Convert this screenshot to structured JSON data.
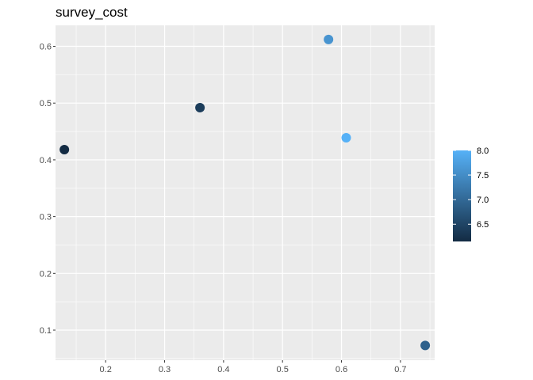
{
  "chart_data": {
    "type": "scatter",
    "title": "survey_cost",
    "xlabel": "",
    "ylabel": "",
    "xlim": [
      0.115,
      0.758
    ],
    "ylim": [
      0.047,
      0.637
    ],
    "x_ticks": [
      0.2,
      0.3,
      0.4,
      0.5,
      0.6,
      0.7
    ],
    "x_tick_labels": [
      "0.2",
      "0.3",
      "0.4",
      "0.5",
      "0.6",
      "0.7"
    ],
    "y_ticks": [
      0.1,
      0.2,
      0.3,
      0.4,
      0.5,
      0.6
    ],
    "y_tick_labels": [
      "0.1",
      "0.2",
      "0.3",
      "0.4",
      "0.5",
      "0.6"
    ],
    "grid": true,
    "legend_position": "right",
    "color_scale": {
      "low": 6.15,
      "high": 8.0,
      "low_color": "#132b43",
      "high_color": "#56b1f7",
      "ticks": [
        6.5,
        7.0,
        7.5,
        8.0
      ],
      "tick_labels": [
        "6.5",
        "7.0",
        "7.5",
        "8.0"
      ]
    },
    "points": [
      {
        "x": 0.13,
        "y": 0.418,
        "color_value": 6.15
      },
      {
        "x": 0.36,
        "y": 0.492,
        "color_value": 6.4
      },
      {
        "x": 0.578,
        "y": 0.612,
        "color_value": 7.6
      },
      {
        "x": 0.608,
        "y": 0.439,
        "color_value": 8.0
      },
      {
        "x": 0.742,
        "y": 0.073,
        "color_value": 6.9
      }
    ],
    "panel_color": "#ebebeb",
    "grid_color": "#ffffff"
  }
}
